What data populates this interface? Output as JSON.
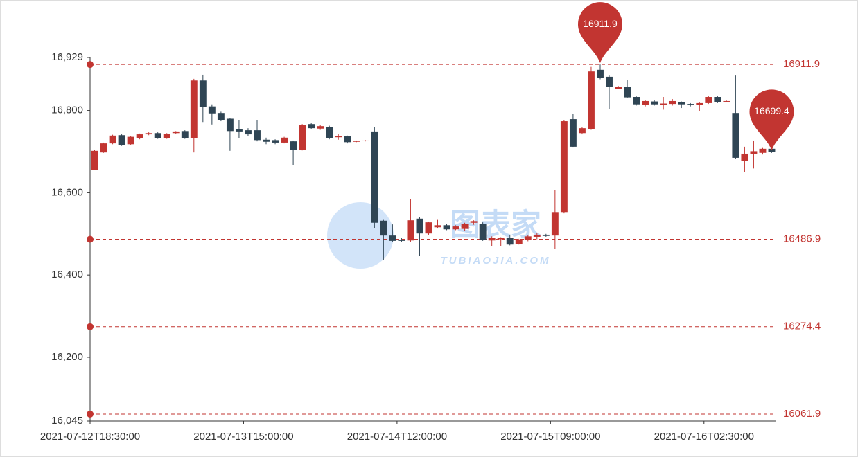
{
  "chart_data": {
    "type": "candlestick",
    "categories": [
      "2021-07-12T18:30:00",
      null,
      null,
      null,
      null,
      null,
      null,
      null,
      null,
      null,
      null,
      null,
      null,
      null,
      null,
      null,
      null,
      "2021-07-13T15:00:00",
      null,
      null,
      null,
      null,
      null,
      null,
      null,
      null,
      null,
      null,
      null,
      null,
      null,
      null,
      null,
      null,
      "2021-07-14T12:00:00",
      null,
      null,
      null,
      null,
      null,
      null,
      null,
      null,
      null,
      null,
      null,
      null,
      null,
      null,
      null,
      null,
      "2021-07-15T09:00:00",
      null,
      null,
      null,
      null,
      null,
      null,
      null,
      null,
      null,
      null,
      null,
      null,
      null,
      null,
      null,
      null,
      "2021-07-16T02:30:00",
      null,
      null,
      null,
      null,
      null,
      null,
      null
    ],
    "up_color": "#c23531",
    "down_color": "#2f4554",
    "series": [
      {
        "values": [
          [
            16656,
            16702,
            16655,
            16705
          ],
          [
            16698,
            16720,
            16697,
            16722
          ],
          [
            16720,
            16739,
            16718,
            16741
          ],
          [
            16740,
            16716,
            16714,
            16742
          ],
          [
            16718,
            16736,
            16716,
            16738
          ],
          [
            16732,
            16742,
            16730,
            16744
          ],
          [
            16742,
            16745,
            16740,
            16747
          ],
          [
            16745,
            16733,
            16731,
            16747
          ],
          [
            16733,
            16743,
            16731,
            16745
          ],
          [
            16745,
            16749,
            16743,
            16750
          ],
          [
            16750,
            16733,
            16731,
            16752
          ],
          [
            16733,
            16873,
            16698,
            16877
          ],
          [
            16873,
            16808,
            16772,
            16887
          ],
          [
            16810,
            16793,
            16766,
            16815
          ],
          [
            16794,
            16777,
            16774,
            16797
          ],
          [
            16780,
            16750,
            16702,
            16782
          ],
          [
            16755,
            16749,
            16732,
            16777
          ],
          [
            16752,
            16742,
            16738,
            16757
          ],
          [
            16752,
            16728,
            16725,
            16777
          ],
          [
            16729,
            16724,
            16718,
            16734
          ],
          [
            16728,
            16722,
            16718,
            16730
          ],
          [
            16722,
            16734,
            16720,
            16736
          ],
          [
            16725,
            16705,
            16668,
            16727
          ],
          [
            16705,
            16765,
            16703,
            16767
          ],
          [
            16767,
            16757,
            16755,
            16770
          ],
          [
            16756,
            16762,
            16753,
            16765
          ],
          [
            16760,
            16733,
            16730,
            16763
          ],
          [
            16735,
            16738,
            16729,
            16742
          ],
          [
            16737,
            16723,
            16720,
            16739
          ],
          [
            16724,
            16726,
            16723,
            16727
          ],
          [
            16726,
            16727,
            16725,
            16728
          ],
          [
            16749,
            16527,
            16513,
            16759
          ],
          [
            16532,
            16496,
            16436,
            16534
          ],
          [
            16496,
            16483,
            16481,
            16523
          ],
          [
            16486,
            16483,
            16481,
            16490
          ],
          [
            16484,
            16533,
            16480,
            16585
          ],
          [
            16537,
            16501,
            16446,
            16540
          ],
          [
            16501,
            16528,
            16498,
            16530
          ],
          [
            16516,
            16521,
            16513,
            16534
          ],
          [
            16521,
            16511,
            16509,
            16524
          ],
          [
            16511,
            16518,
            16509,
            16521
          ],
          [
            16512,
            16524,
            16508,
            16527
          ],
          [
            16527,
            16531,
            16522,
            16533
          ],
          [
            16524,
            16485,
            16483,
            16528
          ],
          [
            16484,
            16491,
            16471,
            16494
          ],
          [
            16487,
            16490,
            16471,
            16492
          ],
          [
            16491,
            16474,
            16472,
            16498
          ],
          [
            16475,
            16486,
            16474,
            16488
          ],
          [
            16486,
            16494,
            16482,
            16498
          ],
          [
            16493,
            16498,
            16487,
            16503
          ],
          [
            16498,
            16495,
            16493,
            16500
          ],
          [
            16496,
            16553,
            16463,
            16606
          ],
          [
            16553,
            16774,
            16550,
            16777
          ],
          [
            16779,
            16712,
            16710,
            16791
          ],
          [
            16745,
            16757,
            16742,
            16759
          ],
          [
            16755,
            16895,
            16753,
            16906
          ],
          [
            16899,
            16880,
            16876,
            16911.9
          ],
          [
            16882,
            16857,
            16804,
            16885
          ],
          [
            16853,
            16858,
            16852,
            16860
          ],
          [
            16857,
            16832,
            16830,
            16875
          ],
          [
            16833,
            16815,
            16812,
            16836
          ],
          [
            16813,
            16823,
            16810,
            16826
          ],
          [
            16822,
            16815,
            16812,
            16825
          ],
          [
            16814,
            16817,
            16802,
            16833
          ],
          [
            16816,
            16823,
            16812,
            16828
          ],
          [
            16820,
            16815,
            16806,
            16822
          ],
          [
            16816,
            16813,
            16810,
            16818
          ],
          [
            16813,
            16818,
            16799,
            16820
          ],
          [
            16818,
            16833,
            16816,
            16836
          ],
          [
            16833,
            16820,
            16818,
            16836
          ],
          [
            16822,
            16823,
            16821,
            16824
          ],
          [
            16794,
            16685,
            16683,
            16885
          ],
          [
            16678,
            16695,
            16651,
            16712
          ],
          [
            16695,
            16701,
            16659,
            16727
          ],
          [
            16697,
            16707,
            16693,
            16709
          ],
          [
            16707,
            16699.4,
            16697,
            16715
          ]
        ]
      }
    ],
    "ylim": [
      16045,
      16929
    ],
    "yticks": [
      {
        "value": 16045,
        "label": "16,045"
      },
      {
        "value": 16200,
        "label": "16,200"
      },
      {
        "value": 16400,
        "label": "16,400"
      },
      {
        "value": 16600,
        "label": "16,600"
      },
      {
        "value": 16800,
        "label": "16,800"
      },
      {
        "value": 16929,
        "label": "16,929"
      }
    ],
    "mark_lines": [
      16911.9,
      16486.9,
      16274.4,
      16061.9
    ],
    "mark_line_color": "#c23531",
    "watermark": {
      "title": "图表家",
      "subtitle": "TUBIAOJIA.COM"
    }
  }
}
